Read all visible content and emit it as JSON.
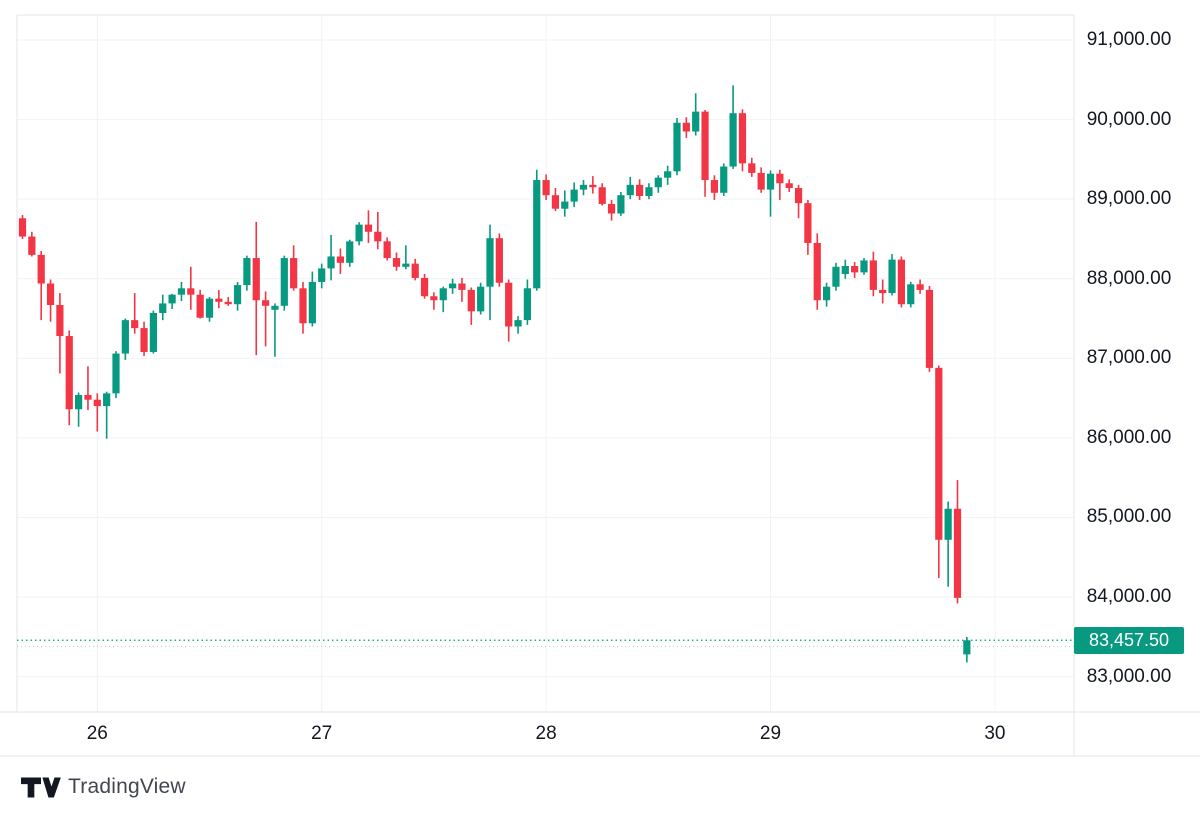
{
  "branding": {
    "logo_text": "TradingView"
  },
  "price_axis": {
    "labels": [
      "91,000.00",
      "90,000.00",
      "89,000.00",
      "88,000.00",
      "87,000.00",
      "86,000.00",
      "85,000.00",
      "84,000.00",
      "83,000.00"
    ],
    "values": [
      91000,
      90000,
      89000,
      88000,
      87000,
      86000,
      85000,
      84000,
      83000
    ]
  },
  "time_axis": {
    "labels": [
      "26",
      "27",
      "28",
      "29",
      "30"
    ],
    "tick_indices": [
      8,
      32,
      56,
      80,
      104
    ]
  },
  "chart_data": {
    "type": "candlestick",
    "title": "",
    "xlabel": "",
    "ylabel": "",
    "x_tick_labels": [
      "26",
      "27",
      "28",
      "29",
      "30"
    ],
    "x_tick_indices": [
      8,
      32,
      56,
      80,
      104
    ],
    "y_ticks": [
      83000,
      84000,
      85000,
      86000,
      87000,
      88000,
      89000,
      90000,
      91000
    ],
    "y_tick_labels": [
      "83,000.00",
      "84,000.00",
      "85,000.00",
      "86,000.00",
      "87,000.00",
      "88,000.00",
      "89,000.00",
      "90,000.00",
      "91,000.00"
    ],
    "ylim": [
      82550,
      91500
    ],
    "grid": true,
    "up_color": "#089981",
    "down_color": "#F23645",
    "grid_color": "#F0F2F5",
    "border_color": "#E4E6EB",
    "current_price": 83457.5,
    "current_price_label": "83,457.50",
    "secondary_dotted_price": 83380,
    "candles": [
      [
        88760,
        88800,
        88500,
        88530
      ],
      [
        88530,
        88590,
        88280,
        88300
      ],
      [
        88300,
        88350,
        87480,
        87940
      ],
      [
        87940,
        87990,
        87460,
        87670
      ],
      [
        87670,
        87820,
        86810,
        87280
      ],
      [
        87280,
        87350,
        86160,
        86360
      ],
      [
        86360,
        86570,
        86140,
        86540
      ],
      [
        86540,
        86900,
        86350,
        86480
      ],
      [
        86480,
        86560,
        86080,
        86400
      ],
      [
        86400,
        86580,
        85990,
        86560
      ],
      [
        86560,
        87090,
        86500,
        87060
      ],
      [
        87060,
        87500,
        86980,
        87480
      ],
      [
        87480,
        87820,
        87310,
        87380
      ],
      [
        87380,
        87460,
        87030,
        87080
      ],
      [
        87080,
        87600,
        87060,
        87570
      ],
      [
        87570,
        87800,
        87480,
        87690
      ],
      [
        87690,
        87810,
        87620,
        87800
      ],
      [
        87800,
        87960,
        87720,
        87880
      ],
      [
        87880,
        88150,
        87610,
        87800
      ],
      [
        87800,
        87860,
        87500,
        87510
      ],
      [
        87510,
        87770,
        87460,
        87750
      ],
      [
        87750,
        87860,
        87630,
        87710
      ],
      [
        87710,
        87770,
        87660,
        87680
      ],
      [
        87680,
        87960,
        87600,
        87920
      ],
      [
        87920,
        88290,
        87850,
        88260
      ],
      [
        88260,
        88715,
        87040,
        87730
      ],
      [
        87730,
        87840,
        87150,
        87660
      ],
      [
        87610,
        87690,
        87020,
        87660
      ],
      [
        87660,
        88290,
        87600,
        88260
      ],
      [
        88260,
        88420,
        87850,
        87880
      ],
      [
        87880,
        87960,
        87310,
        87440
      ],
      [
        87440,
        88090,
        87400,
        87960
      ],
      [
        87960,
        88190,
        87880,
        88130
      ],
      [
        88130,
        88550,
        87980,
        88280
      ],
      [
        88280,
        88380,
        88060,
        88200
      ],
      [
        88200,
        88490,
        88150,
        88470
      ],
      [
        88470,
        88710,
        88420,
        88680
      ],
      [
        88680,
        88860,
        88450,
        88590
      ],
      [
        88590,
        88840,
        88370,
        88470
      ],
      [
        88470,
        88520,
        88230,
        88260
      ],
      [
        88260,
        88330,
        88100,
        88150
      ],
      [
        88150,
        88420,
        88120,
        88190
      ],
      [
        88190,
        88250,
        87980,
        88010
      ],
      [
        88010,
        88060,
        87750,
        87780
      ],
      [
        87780,
        87830,
        87610,
        87730
      ],
      [
        87730,
        87900,
        87580,
        87880
      ],
      [
        87880,
        88000,
        87810,
        87940
      ],
      [
        87940,
        88010,
        87710,
        87860
      ],
      [
        87860,
        87890,
        87420,
        87590
      ],
      [
        87590,
        87950,
        87550,
        87900
      ],
      [
        87900,
        88680,
        87480,
        88510
      ],
      [
        88510,
        88570,
        87900,
        87950
      ],
      [
        87950,
        87990,
        87210,
        87400
      ],
      [
        87400,
        87530,
        87310,
        87480
      ],
      [
        87480,
        87990,
        87420,
        87880
      ],
      [
        87880,
        89370,
        87850,
        89240
      ],
      [
        89240,
        89310,
        88990,
        89050
      ],
      [
        89050,
        89140,
        88850,
        88880
      ],
      [
        88880,
        89110,
        88780,
        88970
      ],
      [
        88970,
        89210,
        88900,
        89120
      ],
      [
        89120,
        89240,
        89050,
        89180
      ],
      [
        89180,
        89290,
        89070,
        89150
      ],
      [
        89150,
        89200,
        88920,
        88940
      ],
      [
        88940,
        88990,
        88730,
        88820
      ],
      [
        88820,
        89090,
        88790,
        89050
      ],
      [
        89050,
        89280,
        89000,
        89180
      ],
      [
        89180,
        89250,
        88990,
        89040
      ],
      [
        89040,
        89200,
        89000,
        89150
      ],
      [
        89150,
        89300,
        89080,
        89270
      ],
      [
        89270,
        89420,
        89180,
        89350
      ],
      [
        89350,
        90020,
        89300,
        89960
      ],
      [
        89960,
        90030,
        89770,
        89850
      ],
      [
        89850,
        90330,
        89800,
        90100
      ],
      [
        90100,
        90120,
        89030,
        89240
      ],
      [
        89240,
        89300,
        88990,
        89080
      ],
      [
        89080,
        89450,
        89040,
        89410
      ],
      [
        89410,
        90430,
        89380,
        90080
      ],
      [
        90080,
        90130,
        89350,
        89450
      ],
      [
        89450,
        89520,
        89280,
        89330
      ],
      [
        89330,
        89400,
        89080,
        89120
      ],
      [
        89120,
        89360,
        88780,
        89320
      ],
      [
        89320,
        89370,
        88990,
        89200
      ],
      [
        89200,
        89250,
        89090,
        89140
      ],
      [
        89140,
        89180,
        88760,
        88950
      ],
      [
        88950,
        88990,
        88300,
        88450
      ],
      [
        88450,
        88570,
        87610,
        87730
      ],
      [
        87730,
        87950,
        87650,
        87900
      ],
      [
        87900,
        88200,
        87850,
        88150
      ],
      [
        88060,
        88240,
        88000,
        88160
      ],
      [
        88160,
        88210,
        88010,
        88080
      ],
      [
        88080,
        88260,
        88050,
        88230
      ],
      [
        88230,
        88340,
        87780,
        87860
      ],
      [
        87860,
        87990,
        87690,
        87820
      ],
      [
        87820,
        88310,
        87790,
        88240
      ],
      [
        88240,
        88280,
        87640,
        87680
      ],
      [
        87680,
        87960,
        87640,
        87930
      ],
      [
        87930,
        87990,
        87810,
        87860
      ],
      [
        87860,
        87910,
        86830,
        86880
      ],
      [
        86880,
        86910,
        84240,
        84720
      ],
      [
        84720,
        85200,
        84130,
        85110
      ],
      [
        85110,
        85470,
        83920,
        83990
      ],
      [
        83280,
        83500,
        83180,
        83457.5
      ]
    ]
  }
}
